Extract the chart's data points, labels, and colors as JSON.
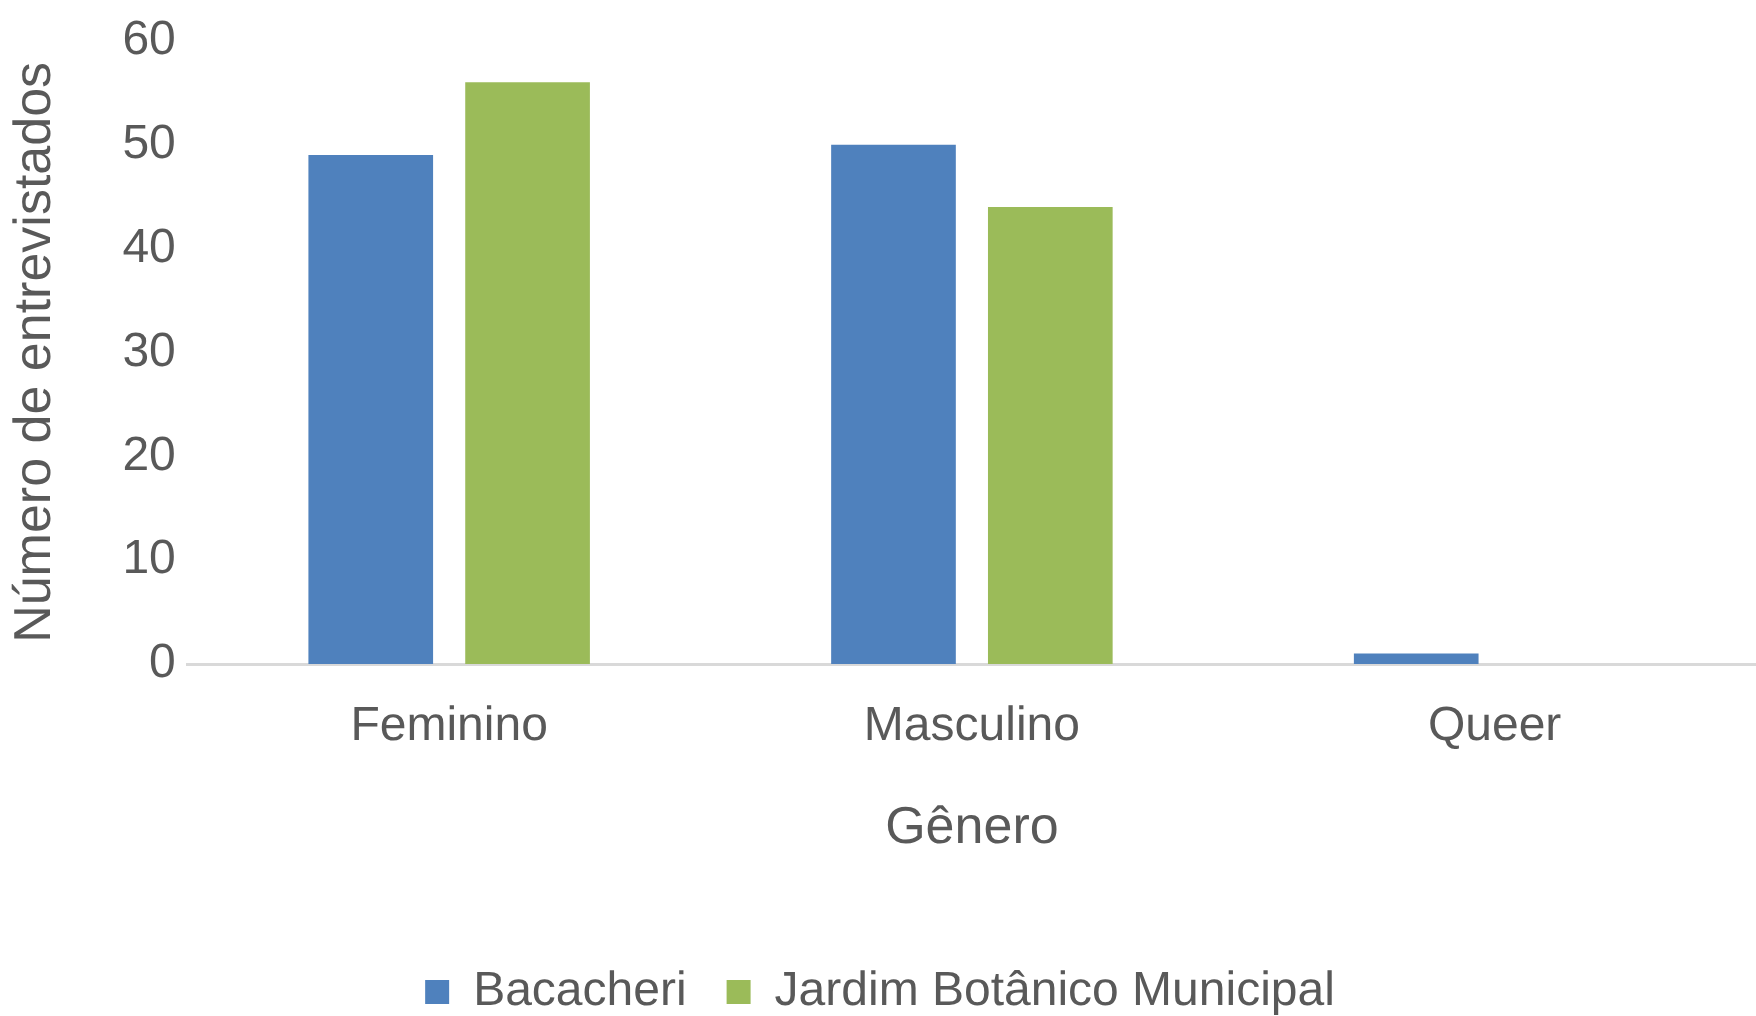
{
  "chart_data": {
    "type": "bar",
    "xlabel": "Gênero",
    "ylabel": "Número de entrevistados",
    "categories": [
      "Feminino",
      "Masculino",
      "Queer"
    ],
    "series": [
      {
        "name": "Bacacheri",
        "color": "#4f81bd",
        "values": [
          49,
          50,
          1
        ]
      },
      {
        "name": "Jardim Botânico Municipal",
        "color": "#9bbb59",
        "values": [
          56,
          44,
          0
        ]
      }
    ],
    "ylim": [
      0,
      60
    ],
    "yticks": [
      0,
      10,
      20,
      30,
      40,
      50,
      60
    ],
    "legend": "bottom"
  }
}
